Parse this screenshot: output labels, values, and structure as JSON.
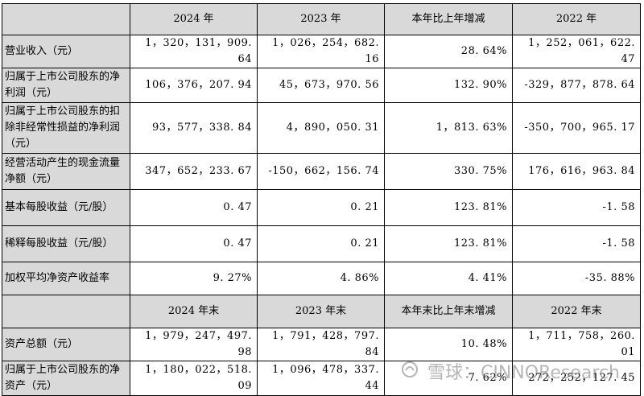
{
  "header": {
    "col0": "",
    "col1": "2024 年",
    "col2": "2023 年",
    "col3": "本年比上年增减",
    "col4": "2022 年"
  },
  "rows": [
    {
      "label": "营业收入（元）",
      "v2024": "1，320，131，909. 64",
      "v2023": "1，026，254，682. 16",
      "change": "28. 64%",
      "v2022": "1，252，061，622. 47"
    },
    {
      "label": "归属于上市公司股东的净利润（元）",
      "v2024": "106，376，207. 94",
      "v2023": "45，673，970. 56",
      "change": "132. 90%",
      "v2022": "-329，877，878. 64"
    },
    {
      "label": "归属于上市公司股东的扣除非经常性损益的净利润（元）",
      "v2024": "93，577，338. 84",
      "v2023": "4，890，050. 31",
      "change": "1，813. 63%",
      "v2022": "-350，700，965. 17"
    },
    {
      "label": "经营活动产生的现金流量净额（元）",
      "v2024": "347，652，233. 67",
      "v2023": "-150，662，156. 74",
      "change": "330. 75%",
      "v2022": "176，616，963. 84"
    },
    {
      "label": "基本每股收益（元/股）",
      "v2024": "0. 47",
      "v2023": "0. 21",
      "change": "123. 81%",
      "v2022": "-1. 58"
    },
    {
      "label": "稀释每股收益（元/股）",
      "v2024": "0. 47",
      "v2023": "0. 21",
      "change": "123. 81%",
      "v2022": "-1. 58"
    },
    {
      "label": "加权平均净资产收益率",
      "v2024": "9. 27%",
      "v2023": "4. 86%",
      "change": "4. 41%",
      "v2022": "-35. 88%"
    }
  ],
  "header2": {
    "col0": "",
    "col1": "2024 年末",
    "col2": "2023 年末",
    "col3": "本年末比上年末增减",
    "col4": "2022 年末"
  },
  "rows2": [
    {
      "label": "资产总额（元）",
      "v2024": "1，979，247，497. 98",
      "v2023": "1，791，428，797. 84",
      "change": "10. 48%",
      "v2022": "1，711，758，260. 01"
    },
    {
      "label": "归属于上市公司股东的净资产（元）",
      "v2024": "1，180，022，518. 09",
      "v2023": "1，096，478，337. 44",
      "change": "7. 62%",
      "v2022": "272，252，127. 45"
    }
  ],
  "watermark": {
    "icon": "snowball-logo-icon",
    "text": "雪球：CINNOResearch"
  }
}
